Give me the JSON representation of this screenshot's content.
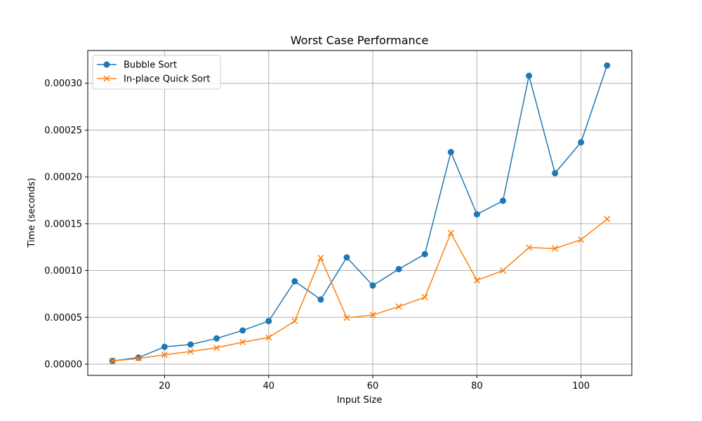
{
  "chart_data": {
    "type": "line",
    "title": "Worst Case Performance",
    "xlabel": "Input Size",
    "ylabel": "Time (seconds)",
    "xlim": [
      5.25,
      109.75
    ],
    "ylim": [
      -1.2e-05,
      0.000335
    ],
    "x_ticks": [
      20,
      40,
      60,
      80,
      100
    ],
    "x_tick_labels": [
      "20",
      "40",
      "60",
      "80",
      "100"
    ],
    "y_ticks": [
      0,
      5e-05,
      0.0001,
      0.00015,
      0.0002,
      0.00025,
      0.0003
    ],
    "y_tick_labels": [
      "0.00000",
      "0.00005",
      "0.00010",
      "0.00015",
      "0.00020",
      "0.00025",
      "0.00030"
    ],
    "grid": true,
    "legend_position": "top-left",
    "x": [
      10,
      15,
      20,
      25,
      30,
      35,
      40,
      45,
      50,
      55,
      60,
      65,
      70,
      75,
      80,
      85,
      90,
      95,
      100,
      105
    ],
    "series": [
      {
        "name": "Bubble Sort",
        "color": "#1f77b4",
        "marker": "circle",
        "values": [
          3.5e-06,
          7e-06,
          1.85e-05,
          2.1e-05,
          2.75e-05,
          3.6e-05,
          4.6e-05,
          8.85e-05,
          6.9e-05,
          0.000114,
          8.4e-05,
          0.0001015,
          0.0001175,
          0.0002265,
          0.00016,
          0.0001745,
          0.000308,
          0.000204,
          0.000237,
          0.000319
        ]
      },
      {
        "name": "In-place Quick Sort",
        "color": "#ff7f0e",
        "marker": "x",
        "values": [
          3.5e-06,
          6e-06,
          1e-05,
          1.35e-05,
          1.75e-05,
          2.35e-05,
          2.85e-05,
          4.6e-05,
          0.0001135,
          4.95e-05,
          5.25e-05,
          6.15e-05,
          7.15e-05,
          0.00014,
          8.95e-05,
          0.0001,
          0.0001245,
          0.0001235,
          0.000133,
          0.000155
        ]
      }
    ]
  }
}
